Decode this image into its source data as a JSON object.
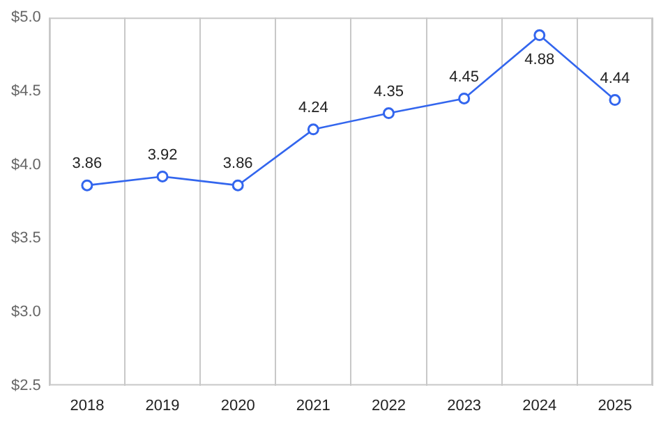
{
  "chart_data": {
    "type": "line",
    "categories": [
      "2018",
      "2019",
      "2020",
      "2021",
      "2022",
      "2023",
      "2024",
      "2025"
    ],
    "series": [
      {
        "color": "#3366ee",
        "values": [
          3.86,
          3.92,
          3.86,
          4.24,
          4.35,
          4.45,
          4.88,
          4.44
        ]
      }
    ],
    "ylim": [
      2.5,
      5.0
    ],
    "yticks": [
      {
        "value": 2.5,
        "label": "$2.5"
      },
      {
        "value": 3,
        "label": "$3.0"
      },
      {
        "value": 3.5,
        "label": "$3.5"
      },
      {
        "value": 4,
        "label": "$4.0"
      },
      {
        "value": 4.5,
        "label": "$4.5"
      },
      {
        "value": 5,
        "label": "$5.0"
      }
    ],
    "grid": "x",
    "legend": false,
    "marker": "circle",
    "line_style": "solid",
    "data_labels": true
  }
}
